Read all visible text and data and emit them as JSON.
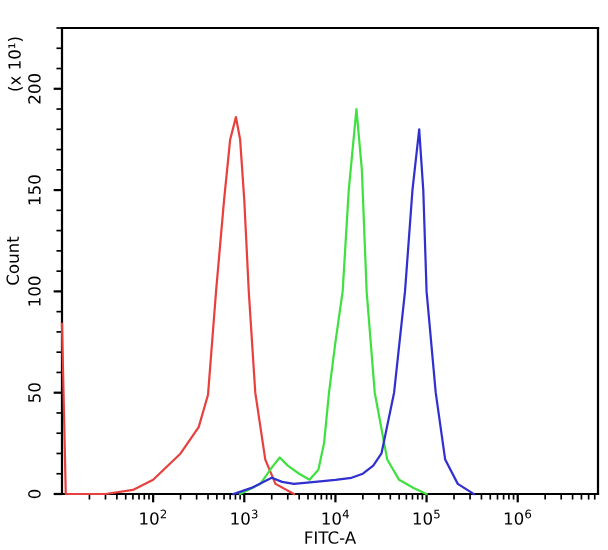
{
  "chart_data": {
    "type": "line",
    "xlabel": "FITC-A",
    "ylabel": "Count",
    "annotations": [
      "(x 10¹)"
    ],
    "log": "x",
    "grid": false,
    "legend": false,
    "marker": "none",
    "line_style": "solid",
    "xlim": [
      10,
      7600000
    ],
    "ylim": [
      0,
      230
    ],
    "xticks": [
      {
        "value": 100,
        "label": "10$^{2}$"
      },
      {
        "value": 1000,
        "label": "10$^{3}$"
      },
      {
        "value": 10000,
        "label": "10$^{4}$"
      },
      {
        "value": 100000,
        "label": "10$^{5}$"
      },
      {
        "value": 1000000,
        "label": "10$^{6}$"
      }
    ],
    "yticks": [
      0,
      50,
      100,
      150,
      200
    ],
    "series": [
      {
        "color": "#e8403f",
        "x": [
          10,
          11,
          30,
          60,
          100,
          200,
          316,
          400,
          490,
          600,
          700,
          810,
          900,
          1000,
          1120,
          1320,
          1700,
          2200,
          3500
        ],
        "values": [
          84,
          0,
          0,
          2,
          7,
          20,
          33,
          49,
          100,
          145,
          175,
          186,
          175,
          145,
          100,
          50,
          17,
          5,
          0
        ]
      },
      {
        "color": "#40e040",
        "x": [
          900,
          1500,
          2000,
          2450,
          3000,
          4000,
          5200,
          6500,
          7500,
          8500,
          10000,
          12000,
          14000,
          17000,
          19500,
          22000,
          27000,
          37000,
          50000,
          72000,
          100000
        ],
        "values": [
          0,
          5,
          13,
          18,
          14,
          10,
          7,
          12,
          25,
          50,
          75,
          100,
          150,
          190,
          160,
          100,
          50,
          17,
          7,
          3,
          0
        ]
      },
      {
        "color": "#3030d0",
        "x": [
          760,
          1200,
          2000,
          2600,
          3500,
          6000,
          10000,
          15000,
          20000,
          26000,
          32000,
          44000,
          58000,
          70000,
          83000,
          92000,
          100000,
          126000,
          160000,
          220000,
          330000
        ],
        "values": [
          0,
          3,
          8,
          6,
          5,
          6,
          7,
          8,
          10,
          14,
          20,
          50,
          100,
          150,
          180,
          150,
          100,
          50,
          17,
          5,
          0
        ]
      }
    ]
  }
}
